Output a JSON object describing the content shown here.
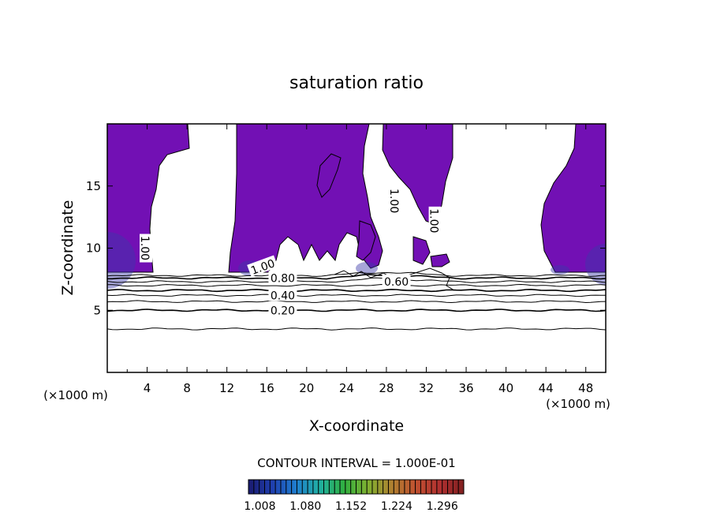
{
  "chart_data": {
    "type": "heatmap",
    "title": "saturation ratio",
    "xlabel": "X-coordinate",
    "ylabel": "Z-coordinate",
    "x_unit": "(×1000 m)",
    "y_unit": "(×1000 m)",
    "xlim": [
      0,
      50
    ],
    "ylim": [
      0,
      20
    ],
    "x_ticks": [
      "4",
      "8",
      "12",
      "16",
      "20",
      "24",
      "28",
      "32",
      "36",
      "40",
      "44",
      "48"
    ],
    "y_ticks": [
      "5",
      "10",
      "15"
    ],
    "fill_color": "#7210b4",
    "contour_interval_text": "CONTOUR INTERVAL = 1.000E-01",
    "contour_labels": [
      {
        "text": "1.00",
        "x": 3.8,
        "z": 10.0,
        "rotate": 90
      },
      {
        "text": "1.00",
        "x": 28.8,
        "z": 13.8,
        "rotate": 90
      },
      {
        "text": "1.00",
        "x": 32.8,
        "z": 12.2,
        "rotate": 90
      },
      {
        "text": "1.00",
        "x": 15.6,
        "z": 8.5,
        "rotate": -20
      },
      {
        "text": "0.80",
        "x": 17.6,
        "z": 7.6,
        "rotate": 0
      },
      {
        "text": "0.60",
        "x": 29.0,
        "z": 7.3,
        "rotate": 0
      },
      {
        "text": "0.40",
        "x": 17.6,
        "z": 6.2,
        "rotate": 0
      },
      {
        "text": "0.20",
        "x": 17.6,
        "z": 5.0,
        "rotate": 0
      }
    ],
    "contour_levels_z": [
      3.5,
      5.0,
      5.7,
      6.2,
      6.6,
      7.0,
      7.3,
      7.6,
      7.8
    ],
    "colorbar": {
      "ticks": [
        "1.008",
        "1.080",
        "1.152",
        "1.224",
        "1.296"
      ],
      "range": [
        0.99,
        1.33
      ],
      "colors": [
        "#1a1a6e",
        "#1f3fb0",
        "#1f7fd0",
        "#20b0a0",
        "#30b040",
        "#80b030",
        "#b08030",
        "#c05030",
        "#b03030",
        "#802020"
      ]
    }
  }
}
